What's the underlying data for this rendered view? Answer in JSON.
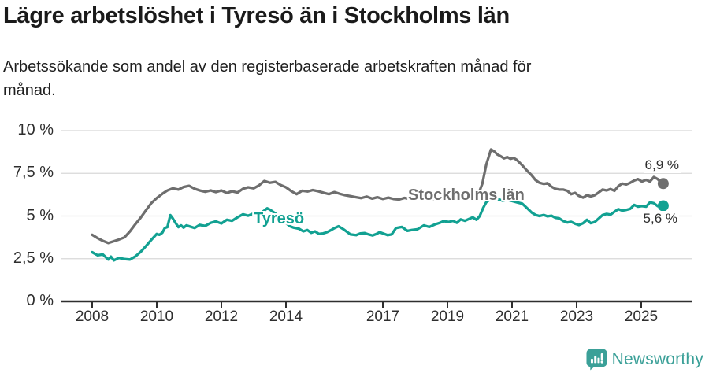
{
  "header": {
    "title": "Lägre arbetslöshet i Tyresö än i Stockholms län",
    "subtitle": "Arbetssökande som andel av den registerbaserade arbetskraften månad för månad."
  },
  "theme": {
    "background": "#ffffff",
    "grid_color": "#d8d8d8",
    "axis_color": "#2e2e2e",
    "text_color": "#1a1a1a",
    "gray_series_color": "#6e6e6e",
    "teal_series_color": "#12a192",
    "logo_color": "#3ba098"
  },
  "footer": {
    "brand_name": "Newsworthy",
    "brand_icon": "speech-bubble-bar-chart-exclamation"
  },
  "chart_data": {
    "type": "line",
    "title": "Lägre arbetslöshet i Tyresö än i Stockholms län",
    "subtitle": "Arbetssökande som andel av den registerbaserade arbetskraften månad för månad.",
    "grid": true,
    "legend_position": "inline-labels",
    "x_unit": "year (monthly data)",
    "y_unit": "%",
    "x_range": [
      2008.0,
      2025.68
    ],
    "ylim": [
      0,
      10
    ],
    "y_ticks": [
      {
        "label": "10 %",
        "value": 10
      },
      {
        "label": "7,5 %",
        "value": 7.5
      },
      {
        "label": "5 %",
        "value": 5
      },
      {
        "label": "2,5 %",
        "value": 2.5
      },
      {
        "label": "0 %",
        "value": 0
      }
    ],
    "x_ticks": [
      {
        "label": "2008",
        "year": 2008
      },
      {
        "label": "2010",
        "year": 2010
      },
      {
        "label": "2012",
        "year": 2012
      },
      {
        "label": "2014",
        "year": 2014
      },
      {
        "label": "2017",
        "year": 2017
      },
      {
        "label": "2019",
        "year": 2019
      },
      {
        "label": "2021",
        "year": 2021
      },
      {
        "label": "2023",
        "year": 2023
      },
      {
        "label": "2025",
        "year": 2025
      }
    ],
    "series": [
      {
        "name": "Stockholms län",
        "color": "#6e6e6e",
        "end_label": "6,9 %",
        "end_value": 6.9,
        "points": [
          [
            2008.0,
            3.9
          ],
          [
            2008.17,
            3.7
          ],
          [
            2008.33,
            3.55
          ],
          [
            2008.5,
            3.42
          ],
          [
            2008.67,
            3.52
          ],
          [
            2008.83,
            3.62
          ],
          [
            2009.0,
            3.75
          ],
          [
            2009.17,
            4.1
          ],
          [
            2009.33,
            4.5
          ],
          [
            2009.5,
            4.9
          ],
          [
            2009.67,
            5.35
          ],
          [
            2009.83,
            5.75
          ],
          [
            2010.0,
            6.05
          ],
          [
            2010.17,
            6.3
          ],
          [
            2010.33,
            6.5
          ],
          [
            2010.5,
            6.62
          ],
          [
            2010.67,
            6.55
          ],
          [
            2010.83,
            6.7
          ],
          [
            2011.0,
            6.77
          ],
          [
            2011.17,
            6.6
          ],
          [
            2011.33,
            6.5
          ],
          [
            2011.5,
            6.42
          ],
          [
            2011.67,
            6.5
          ],
          [
            2011.83,
            6.4
          ],
          [
            2012.0,
            6.5
          ],
          [
            2012.17,
            6.35
          ],
          [
            2012.33,
            6.45
          ],
          [
            2012.5,
            6.38
          ],
          [
            2012.67,
            6.6
          ],
          [
            2012.83,
            6.68
          ],
          [
            2013.0,
            6.62
          ],
          [
            2013.17,
            6.8
          ],
          [
            2013.33,
            7.05
          ],
          [
            2013.5,
            6.95
          ],
          [
            2013.67,
            7.0
          ],
          [
            2013.83,
            6.82
          ],
          [
            2014.0,
            6.68
          ],
          [
            2014.17,
            6.45
          ],
          [
            2014.33,
            6.28
          ],
          [
            2014.5,
            6.48
          ],
          [
            2014.67,
            6.44
          ],
          [
            2014.83,
            6.52
          ],
          [
            2015.0,
            6.45
          ],
          [
            2015.17,
            6.36
          ],
          [
            2015.33,
            6.28
          ],
          [
            2015.5,
            6.4
          ],
          [
            2015.67,
            6.3
          ],
          [
            2015.83,
            6.22
          ],
          [
            2016.0,
            6.16
          ],
          [
            2016.17,
            6.1
          ],
          [
            2016.33,
            6.05
          ],
          [
            2016.5,
            6.14
          ],
          [
            2016.67,
            6.02
          ],
          [
            2016.83,
            6.1
          ],
          [
            2017.0,
            6.0
          ],
          [
            2017.17,
            6.08
          ],
          [
            2017.33,
            6.0
          ],
          [
            2017.5,
            5.97
          ],
          [
            2017.67,
            6.06
          ],
          [
            2017.83,
            6.0
          ],
          [
            2018.0,
            6.08
          ],
          [
            2018.17,
            5.97
          ],
          [
            2018.33,
            5.93
          ],
          [
            2018.5,
            6.0
          ],
          [
            2018.67,
            5.94
          ],
          [
            2018.83,
            6.0
          ],
          [
            2019.0,
            6.04
          ],
          [
            2019.17,
            5.97
          ],
          [
            2019.33,
            6.08
          ],
          [
            2019.5,
            6.02
          ],
          [
            2019.67,
            6.08
          ],
          [
            2019.83,
            6.14
          ],
          [
            2019.95,
            6.25
          ],
          [
            2020.08,
            6.9
          ],
          [
            2020.2,
            8.0
          ],
          [
            2020.35,
            8.9
          ],
          [
            2020.45,
            8.78
          ],
          [
            2020.55,
            8.6
          ],
          [
            2020.65,
            8.5
          ],
          [
            2020.75,
            8.38
          ],
          [
            2020.85,
            8.45
          ],
          [
            2020.95,
            8.35
          ],
          [
            2021.05,
            8.4
          ],
          [
            2021.15,
            8.28
          ],
          [
            2021.3,
            8.0
          ],
          [
            2021.45,
            7.68
          ],
          [
            2021.6,
            7.4
          ],
          [
            2021.73,
            7.1
          ],
          [
            2021.85,
            6.95
          ],
          [
            2021.98,
            6.88
          ],
          [
            2022.1,
            6.92
          ],
          [
            2022.22,
            6.72
          ],
          [
            2022.34,
            6.6
          ],
          [
            2022.46,
            6.55
          ],
          [
            2022.59,
            6.55
          ],
          [
            2022.71,
            6.48
          ],
          [
            2022.83,
            6.28
          ],
          [
            2022.95,
            6.36
          ],
          [
            2023.07,
            6.18
          ],
          [
            2023.2,
            6.08
          ],
          [
            2023.32,
            6.22
          ],
          [
            2023.44,
            6.15
          ],
          [
            2023.56,
            6.22
          ],
          [
            2023.68,
            6.38
          ],
          [
            2023.8,
            6.55
          ],
          [
            2023.93,
            6.5
          ],
          [
            2024.05,
            6.58
          ],
          [
            2024.17,
            6.48
          ],
          [
            2024.29,
            6.75
          ],
          [
            2024.41,
            6.9
          ],
          [
            2024.54,
            6.85
          ],
          [
            2024.66,
            6.95
          ],
          [
            2024.78,
            7.08
          ],
          [
            2024.9,
            7.16
          ],
          [
            2025.02,
            7.02
          ],
          [
            2025.15,
            7.12
          ],
          [
            2025.27,
            7.02
          ],
          [
            2025.39,
            7.28
          ],
          [
            2025.51,
            7.16
          ],
          [
            2025.59,
            7.0
          ],
          [
            2025.68,
            6.9
          ]
        ]
      },
      {
        "name": "Tyresö",
        "color": "#12a192",
        "end_label": "5,6 %",
        "end_value": 5.6,
        "points": [
          [
            2008.0,
            2.88
          ],
          [
            2008.17,
            2.7
          ],
          [
            2008.33,
            2.75
          ],
          [
            2008.5,
            2.45
          ],
          [
            2008.58,
            2.62
          ],
          [
            2008.67,
            2.4
          ],
          [
            2008.83,
            2.55
          ],
          [
            2009.0,
            2.48
          ],
          [
            2009.17,
            2.45
          ],
          [
            2009.33,
            2.62
          ],
          [
            2009.5,
            2.9
          ],
          [
            2009.67,
            3.25
          ],
          [
            2009.83,
            3.6
          ],
          [
            2010.0,
            3.95
          ],
          [
            2010.08,
            3.9
          ],
          [
            2010.17,
            4.02
          ],
          [
            2010.25,
            4.3
          ],
          [
            2010.33,
            4.35
          ],
          [
            2010.42,
            5.05
          ],
          [
            2010.5,
            4.85
          ],
          [
            2010.58,
            4.6
          ],
          [
            2010.67,
            4.35
          ],
          [
            2010.75,
            4.45
          ],
          [
            2010.83,
            4.32
          ],
          [
            2010.92,
            4.45
          ],
          [
            2011.0,
            4.4
          ],
          [
            2011.17,
            4.3
          ],
          [
            2011.33,
            4.48
          ],
          [
            2011.5,
            4.42
          ],
          [
            2011.67,
            4.6
          ],
          [
            2011.83,
            4.68
          ],
          [
            2012.0,
            4.56
          ],
          [
            2012.17,
            4.78
          ],
          [
            2012.33,
            4.72
          ],
          [
            2012.5,
            4.92
          ],
          [
            2012.67,
            5.1
          ],
          [
            2012.83,
            5.02
          ],
          [
            2013.0,
            5.15
          ],
          [
            2013.17,
            5.12
          ],
          [
            2013.25,
            5.22
          ],
          [
            2013.33,
            5.32
          ],
          [
            2013.42,
            5.45
          ],
          [
            2013.5,
            5.38
          ],
          [
            2013.67,
            5.15
          ],
          [
            2013.83,
            4.88
          ],
          [
            2014.0,
            4.6
          ],
          [
            2014.12,
            4.4
          ],
          [
            2014.24,
            4.32
          ],
          [
            2014.41,
            4.25
          ],
          [
            2014.54,
            4.1
          ],
          [
            2014.66,
            4.18
          ],
          [
            2014.78,
            4.02
          ],
          [
            2014.9,
            4.1
          ],
          [
            2015.02,
            3.95
          ],
          [
            2015.15,
            3.98
          ],
          [
            2015.27,
            4.05
          ],
          [
            2015.39,
            4.17
          ],
          [
            2015.51,
            4.3
          ],
          [
            2015.63,
            4.4
          ],
          [
            2015.8,
            4.2
          ],
          [
            2016.0,
            3.92
          ],
          [
            2016.17,
            3.88
          ],
          [
            2016.3,
            3.98
          ],
          [
            2016.44,
            4.0
          ],
          [
            2016.56,
            3.92
          ],
          [
            2016.68,
            3.86
          ],
          [
            2016.8,
            3.95
          ],
          [
            2016.9,
            4.05
          ],
          [
            2017.0,
            3.98
          ],
          [
            2017.15,
            3.88
          ],
          [
            2017.27,
            3.92
          ],
          [
            2017.41,
            4.3
          ],
          [
            2017.59,
            4.36
          ],
          [
            2017.76,
            4.13
          ],
          [
            2017.9,
            4.18
          ],
          [
            2018.07,
            4.22
          ],
          [
            2018.27,
            4.45
          ],
          [
            2018.44,
            4.36
          ],
          [
            2018.63,
            4.52
          ],
          [
            2018.76,
            4.6
          ],
          [
            2018.88,
            4.7
          ],
          [
            2019.05,
            4.65
          ],
          [
            2019.17,
            4.72
          ],
          [
            2019.29,
            4.6
          ],
          [
            2019.41,
            4.8
          ],
          [
            2019.54,
            4.72
          ],
          [
            2019.66,
            4.82
          ],
          [
            2019.78,
            4.92
          ],
          [
            2019.9,
            4.78
          ],
          [
            2020.0,
            5.0
          ],
          [
            2020.1,
            5.45
          ],
          [
            2020.2,
            5.8
          ],
          [
            2020.3,
            5.95
          ],
          [
            2020.42,
            6.02
          ],
          [
            2020.5,
            5.92
          ],
          [
            2020.58,
            5.98
          ],
          [
            2020.7,
            5.9
          ],
          [
            2020.85,
            5.95
          ],
          [
            2021.0,
            5.88
          ],
          [
            2021.15,
            5.8
          ],
          [
            2021.32,
            5.72
          ],
          [
            2021.49,
            5.42
          ],
          [
            2021.61,
            5.2
          ],
          [
            2021.73,
            5.06
          ],
          [
            2021.85,
            5.0
          ],
          [
            2021.98,
            5.06
          ],
          [
            2022.1,
            4.98
          ],
          [
            2022.22,
            5.02
          ],
          [
            2022.34,
            4.9
          ],
          [
            2022.46,
            4.86
          ],
          [
            2022.59,
            4.7
          ],
          [
            2022.71,
            4.62
          ],
          [
            2022.83,
            4.66
          ],
          [
            2022.95,
            4.55
          ],
          [
            2023.07,
            4.47
          ],
          [
            2023.2,
            4.58
          ],
          [
            2023.32,
            4.78
          ],
          [
            2023.44,
            4.58
          ],
          [
            2023.56,
            4.65
          ],
          [
            2023.68,
            4.85
          ],
          [
            2023.8,
            5.05
          ],
          [
            2023.93,
            5.12
          ],
          [
            2024.05,
            5.08
          ],
          [
            2024.17,
            5.25
          ],
          [
            2024.29,
            5.4
          ],
          [
            2024.41,
            5.32
          ],
          [
            2024.54,
            5.36
          ],
          [
            2024.66,
            5.42
          ],
          [
            2024.78,
            5.65
          ],
          [
            2024.9,
            5.55
          ],
          [
            2025.02,
            5.58
          ],
          [
            2025.15,
            5.55
          ],
          [
            2025.27,
            5.8
          ],
          [
            2025.39,
            5.75
          ],
          [
            2025.51,
            5.58
          ],
          [
            2025.59,
            5.65
          ],
          [
            2025.68,
            5.6
          ]
        ]
      }
    ]
  }
}
